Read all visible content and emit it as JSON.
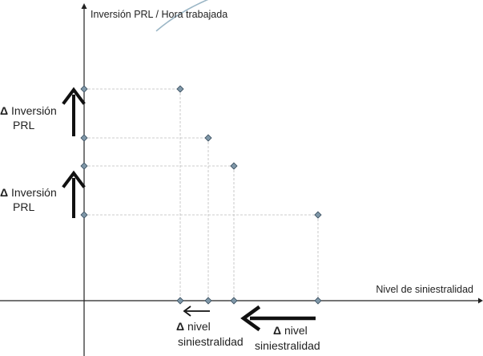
{
  "chart_data": {
    "type": "line",
    "ylabel": "Inversión PRL / Hora trabajada",
    "xlabel": "Nivel de siniestralidad",
    "grid": false,
    "legend": "none",
    "series": [
      {
        "values": []
      }
    ],
    "markers": [
      {
        "x": 225,
        "y": 111
      },
      {
        "x": 260,
        "y": 172
      },
      {
        "x": 292,
        "y": 207
      },
      {
        "x": 397,
        "y": 268
      }
    ],
    "annotations": {
      "y_upper": {
        "delta": "Δ",
        "line1": " Inversión",
        "line2": "PRL"
      },
      "y_lower": {
        "delta": "Δ",
        "line1": " Inversión",
        "line2": "PRL"
      },
      "x_left": {
        "delta": "Δ",
        "line1": " nivel",
        "line2": "siniestralidad"
      },
      "x_right": {
        "delta": "Δ",
        "line1": " nivel",
        "line2": "siniestralidad"
      }
    },
    "colors": {
      "curve": "#9bb6c6",
      "marker_fill": "#7f97a8",
      "marker_stroke": "#35495a",
      "guide": "#bdbdbd",
      "axis": "#222222",
      "arrow": "#111111"
    }
  }
}
